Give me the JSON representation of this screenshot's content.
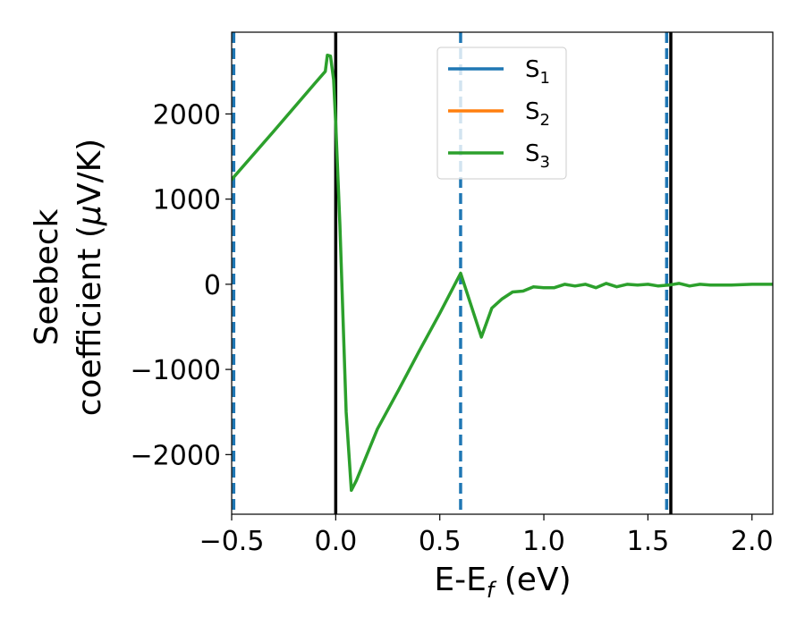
{
  "chart_data": {
    "type": "line",
    "xlabel": "E-E",
    "xlabel_sub": "f",
    "xlabel_unit": " (eV)",
    "ylabel_line1": "Seebeck",
    "ylabel_line2": "coefficient  (",
    "ylabel_mu": "μ",
    "ylabel_unit": "V/K)",
    "xlim": [
      -0.5,
      2.1
    ],
    "ylim": [
      -2700,
      2960
    ],
    "xticks": [
      -0.5,
      0.0,
      0.5,
      1.0,
      1.5,
      2.0
    ],
    "xtick_labels": [
      "−0.5",
      "0.0",
      "0.5",
      "1.0",
      "1.5",
      "2.0"
    ],
    "yticks": [
      -2000,
      -1000,
      0,
      1000,
      2000
    ],
    "ytick_labels": [
      "−2000",
      "−1000",
      "0",
      "1000",
      "2000"
    ],
    "grid": false,
    "legend_position": "top-center",
    "series": [
      {
        "name": "S",
        "sub": "1",
        "color": "#1f77b4",
        "x": [],
        "y": []
      },
      {
        "name": "S",
        "sub": "2",
        "color": "#ff7f0e",
        "x": [],
        "y": []
      },
      {
        "name": "S",
        "sub": "3",
        "color": "#2ca02c",
        "x": [
          -0.5,
          -0.3,
          -0.1,
          -0.05,
          -0.04,
          -0.025,
          -0.01,
          0.0,
          0.02,
          0.05,
          0.075,
          0.1,
          0.2,
          0.3,
          0.4,
          0.5,
          0.6,
          0.7,
          0.75,
          0.8,
          0.85,
          0.9,
          0.95,
          1.0,
          1.05,
          1.1,
          1.15,
          1.2,
          1.25,
          1.3,
          1.35,
          1.4,
          1.45,
          1.5,
          1.55,
          1.6,
          1.65,
          1.7,
          1.75,
          1.8,
          1.85,
          1.9,
          2.0,
          2.1
        ],
        "y": [
          1230,
          1790,
          2360,
          2500,
          2690,
          2680,
          2400,
          1900,
          700,
          -1500,
          -2420,
          -2300,
          -1700,
          -1250,
          -790,
          -340,
          130,
          -620,
          -280,
          -170,
          -90,
          -80,
          -30,
          -40,
          -40,
          0,
          -20,
          0,
          -40,
          10,
          -30,
          0,
          -10,
          0,
          -20,
          -10,
          10,
          -20,
          0,
          -10,
          -10,
          -10,
          0,
          0
        ]
      }
    ],
    "vlines_dashed": {
      "color": "#1f77b4",
      "x": [
        -0.49,
        0.6,
        1.59
      ]
    },
    "vlines_solid": {
      "color": "#000000",
      "x": [
        0.0,
        1.61
      ]
    }
  }
}
